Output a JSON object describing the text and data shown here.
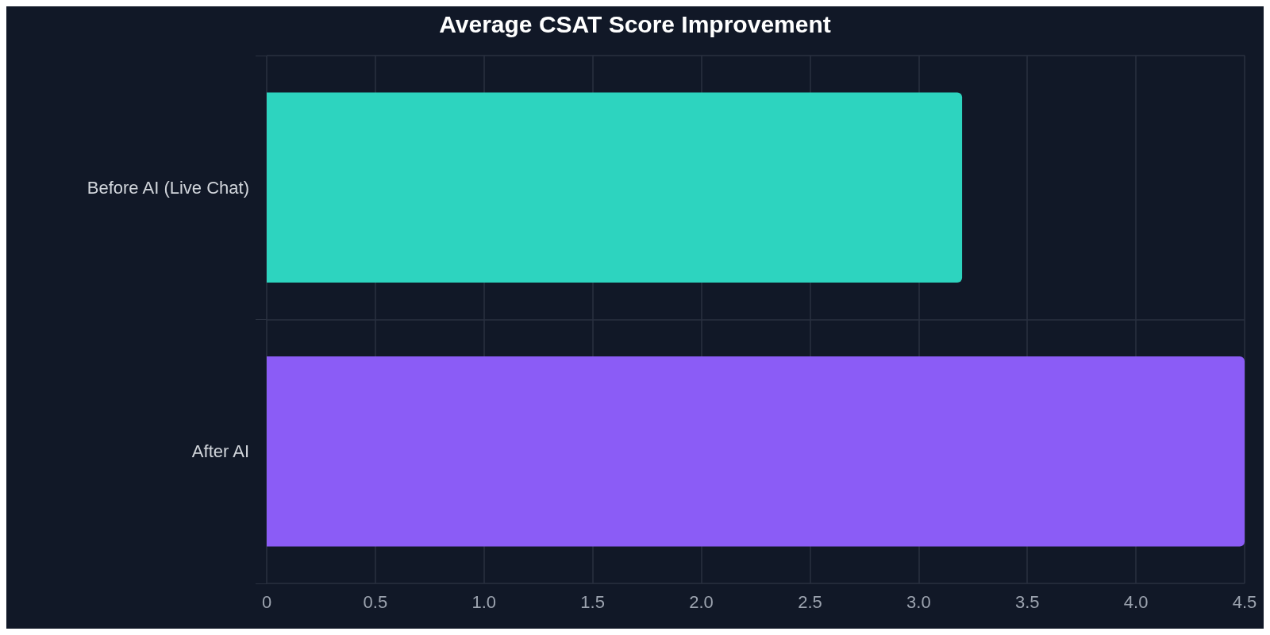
{
  "chart_data": {
    "type": "bar",
    "orientation": "horizontal",
    "title": "Average CSAT Score Improvement",
    "categories": [
      "Before AI (Live Chat)",
      "After AI"
    ],
    "values": [
      3.2,
      4.5
    ],
    "colors": [
      "#2dd4bf",
      "#8b5cf6"
    ],
    "xlim": [
      0,
      4.5
    ],
    "xticks": [
      0,
      0.5,
      {
        "value": 1,
        "label": "1.0"
      },
      1.5,
      {
        "value": 2,
        "label": "2.0"
      },
      2.5,
      {
        "value": 3,
        "label": "3.0"
      },
      3.5,
      {
        "value": 4,
        "label": "4.0"
      },
      4.5
    ],
    "grid": true
  }
}
